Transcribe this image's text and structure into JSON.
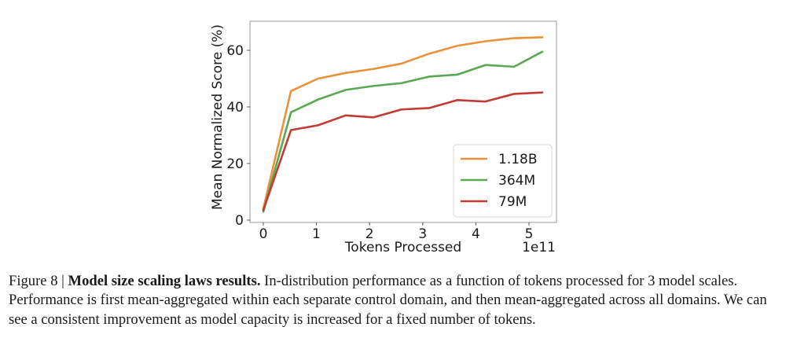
{
  "chart_data": {
    "type": "line",
    "title": "",
    "xlabel": "Tokens Processed",
    "x_offset_label": "1e11",
    "ylabel": "Mean Normalized Score (%)",
    "xlim": [
      -0.25,
      5.5
    ],
    "ylim": [
      0,
      70.5
    ],
    "x_ticks": [
      0,
      1,
      2,
      3,
      4,
      5
    ],
    "y_ticks": [
      0,
      20,
      40,
      60
    ],
    "grid": false,
    "legend_position": "lower-right",
    "x": [
      0,
      0.52,
      1.03,
      1.55,
      2.07,
      2.6,
      3.12,
      3.65,
      4.18,
      4.72,
      5.25
    ],
    "series": [
      {
        "name": "1.18B",
        "color": "#e8923a",
        "values": [
          4.0,
          45.6,
          50.0,
          52.0,
          53.4,
          55.3,
          58.8,
          61.6,
          63.2,
          64.3,
          64.6
        ]
      },
      {
        "name": "364M",
        "color": "#5aa852",
        "values": [
          3.0,
          38.1,
          42.6,
          46.0,
          47.4,
          48.4,
          50.7,
          51.4,
          54.8,
          54.2,
          59.5
        ]
      },
      {
        "name": "79M",
        "color": "#c23b35",
        "values": [
          3.5,
          31.8,
          33.5,
          37.0,
          36.3,
          39.1,
          39.6,
          42.4,
          41.9,
          44.6,
          45.1
        ]
      }
    ]
  },
  "caption": {
    "figure_label": "Figure 8 | ",
    "bold_title": "Model size scaling laws results.",
    "body": " In-distribution performance as a function of tokens processed for 3 model scales. Performance is first mean-aggregated within each separate control domain, and then mean-aggregated across all domains. We can see a consistent improvement as model capacity is increased for a fixed number of tokens."
  }
}
